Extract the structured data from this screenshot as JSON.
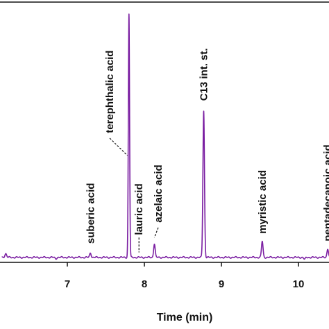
{
  "chart_data": {
    "type": "line",
    "title": "",
    "xlabel": "Time (min)",
    "ylabel": "",
    "xlim": [
      6.2,
      10.45
    ],
    "ylim": [
      0,
      100
    ],
    "x_ticks": [
      {
        "value": 7,
        "label": "7"
      },
      {
        "value": 8,
        "label": "8"
      },
      {
        "value": 9,
        "label": "9"
      },
      {
        "value": 10,
        "label": "10"
      }
    ],
    "baseline": 2.0,
    "line_color": "#7b1fa2",
    "peaks": [
      {
        "x": 6.2,
        "height": 3.5,
        "width": 0.012
      },
      {
        "x": 6.85,
        "height": 1.5,
        "width": 0.01
      },
      {
        "x": 7.3,
        "height": 3.8,
        "width": 0.01
      },
      {
        "x": 7.8,
        "height": 100,
        "width": 0.008
      },
      {
        "x": 7.93,
        "height": 2.0,
        "width": 0.008
      },
      {
        "x": 8.13,
        "height": 7.5,
        "width": 0.01
      },
      {
        "x": 8.77,
        "height": 61,
        "width": 0.01
      },
      {
        "x": 9.53,
        "height": 8.5,
        "width": 0.01
      },
      {
        "x": 10.08,
        "height": 1.2,
        "width": 0.01
      },
      {
        "x": 10.38,
        "height": 5.5,
        "width": 0.01
      }
    ],
    "annotations": [
      {
        "text": "suberic acid",
        "x": 7.3,
        "label_base_y": 7.5,
        "leader": false
      },
      {
        "text": "terephthalic acid",
        "x": 7.8,
        "label_x": 7.55,
        "label_base_y": 52,
        "leader": true,
        "leader_from_y": 50,
        "leader_to_x": 7.78,
        "leader_to_y": 43
      },
      {
        "text": "lauric acid",
        "x": 7.93,
        "label_base_y": 11,
        "leader": true,
        "leader_from_y": 10,
        "leader_to_x": 7.93,
        "leader_to_y": 4
      },
      {
        "text": "azelaic acid",
        "x": 8.13,
        "label_x": 8.18,
        "label_base_y": 16,
        "leader": true,
        "leader_from_y": 14,
        "leader_to_x": 8.13,
        "leader_to_y": 10
      },
      {
        "text": "C13 int. st.",
        "x": 8.77,
        "label_base_y": 65,
        "leader": false
      },
      {
        "text": "myristic acid",
        "x": 9.53,
        "label_base_y": 11.5,
        "leader": false
      },
      {
        "text": "pentadecanoic acid",
        "x": 10.38,
        "label_base_y": 8.5,
        "leader": false
      }
    ],
    "grid": false,
    "legend": "none"
  }
}
